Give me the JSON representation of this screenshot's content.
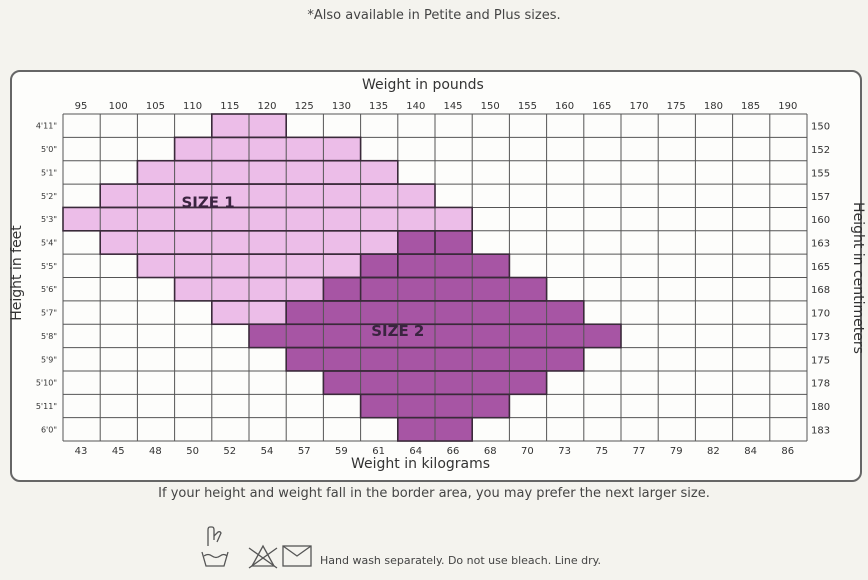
{
  "note": "*Also available in Petite and Plus sizes.",
  "footer": "If your height and weight fall in the border area, you may prefer the next larger size.",
  "care": "Hand wash separately. Do not use bleach. Line dry.",
  "care_icons": [
    "hand-wash-icon",
    "no-bleach-icon",
    "line-dry-icon"
  ],
  "chart_data": {
    "type": "heatmap",
    "title": "",
    "xlabel_top": "Weight in pounds",
    "xlabel_bottom": "Weight in kilograms",
    "ylabel_left": "Height in feet",
    "ylabel_right": "Height in centimeters",
    "pounds": [
      "95",
      "100",
      "105",
      "110",
      "115",
      "120",
      "125",
      "130",
      "135",
      "140",
      "145",
      "150",
      "155",
      "160",
      "165",
      "170",
      "175",
      "180",
      "185",
      "190"
    ],
    "kilograms": [
      "43",
      "45",
      "48",
      "50",
      "52",
      "54",
      "57",
      "59",
      "61",
      "64",
      "66",
      "68",
      "70",
      "73",
      "75",
      "77",
      "79",
      "82",
      "84",
      "86"
    ],
    "heights_ft": [
      "4'11\"",
      "5'0\"",
      "5'1\"",
      "5'2\"",
      "5'3\"",
      "5'4\"",
      "5'5\"",
      "5'6\"",
      "5'7\"",
      "5'8\"",
      "5'9\"",
      "5'10\"",
      "5'11\"",
      "6'0\""
    ],
    "heights_cm": [
      "150",
      "152",
      "155",
      "157",
      "160",
      "163",
      "165",
      "168",
      "170",
      "173",
      "175",
      "178",
      "180",
      "183"
    ],
    "series": [
      {
        "name": "SIZE 1",
        "color": "#ecbde8",
        "rows": [
          {
            "height": "4'11\"",
            "from": "115",
            "to": "120"
          },
          {
            "height": "5'0\"",
            "from": "110",
            "to": "130"
          },
          {
            "height": "5'1\"",
            "from": "105",
            "to": "135"
          },
          {
            "height": "5'2\"",
            "from": "100",
            "to": "140"
          },
          {
            "height": "5'3\"",
            "from": "95",
            "to": "145"
          },
          {
            "height": "5'4\"",
            "from": "100",
            "to": "140"
          },
          {
            "height": "5'5\"",
            "from": "105",
            "to": "135"
          },
          {
            "height": "5'6\"",
            "from": "110",
            "to": "130"
          },
          {
            "height": "5'7\"",
            "from": "115",
            "to": "120"
          }
        ]
      },
      {
        "name": "SIZE 2",
        "color": "#a755a4",
        "rows": [
          {
            "height": "5'4\"",
            "from": "140",
            "to": "145"
          },
          {
            "height": "5'5\"",
            "from": "135",
            "to": "150"
          },
          {
            "height": "5'6\"",
            "from": "130",
            "to": "155"
          },
          {
            "height": "5'7\"",
            "from": "125",
            "to": "160"
          },
          {
            "height": "5'8\"",
            "from": "120",
            "to": "165"
          },
          {
            "height": "5'9\"",
            "from": "125",
            "to": "160"
          },
          {
            "height": "5'10\"",
            "from": "130",
            "to": "155"
          },
          {
            "height": "5'11\"",
            "from": "135",
            "to": "150"
          },
          {
            "height": "6'0\"",
            "from": "140",
            "to": "145"
          }
        ]
      }
    ],
    "grid": true
  }
}
